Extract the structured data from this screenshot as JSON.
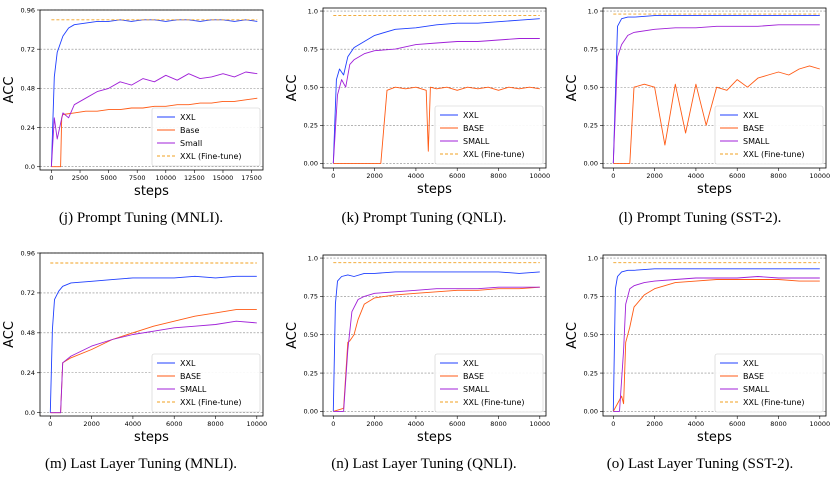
{
  "colors": {
    "xxl": "#1f3fff",
    "base": "#ff5a14",
    "small": "#a020d8",
    "finetune": "#f0a020",
    "grid": "#888888"
  },
  "chart_data": [
    {
      "type": "line",
      "caption": "(j) Prompt Tuning (MNLI).",
      "xlabel": "steps",
      "ylabel": "ACC",
      "xlim": [
        -1000,
        18500
      ],
      "ylim": [
        -0.02,
        0.96
      ],
      "xticks": [
        0,
        2500,
        5000,
        7500,
        10000,
        12500,
        15000,
        17500
      ],
      "xtick_labels": [
        "0",
        "2500",
        "5000",
        "7500",
        "10000",
        "12500",
        "15000",
        "17500"
      ],
      "yticks": [
        0.0,
        0.24,
        0.48,
        0.72,
        0.96
      ],
      "ytick_labels": [
        "0.0",
        "0.24",
        "0.48",
        "0.72",
        "0.96"
      ],
      "grid_y": true,
      "legend": [
        "XXL",
        "Base",
        "Small",
        "XXL (Fine-tune)"
      ],
      "legend_position": "lower-right",
      "series": [
        {
          "name": "XXL",
          "x": [
            0,
            250,
            500,
            1000,
            1500,
            2000,
            3000,
            4000,
            5000,
            6000,
            7000,
            8000,
            9000,
            10000,
            11000,
            12000,
            13000,
            14000,
            15000,
            16000,
            17000,
            18000
          ],
          "y": [
            0.0,
            0.55,
            0.7,
            0.8,
            0.85,
            0.87,
            0.88,
            0.89,
            0.89,
            0.9,
            0.89,
            0.9,
            0.9,
            0.89,
            0.9,
            0.9,
            0.89,
            0.9,
            0.9,
            0.89,
            0.9,
            0.89
          ]
        },
        {
          "name": "Base",
          "x": [
            0,
            800,
            900,
            1000,
            2000,
            3000,
            4000,
            5000,
            6000,
            7000,
            8000,
            9000,
            10000,
            11000,
            12000,
            13000,
            14000,
            15000,
            16000,
            17000,
            18000
          ],
          "y": [
            0.0,
            0.0,
            0.3,
            0.32,
            0.33,
            0.34,
            0.34,
            0.35,
            0.35,
            0.36,
            0.36,
            0.37,
            0.37,
            0.38,
            0.38,
            0.39,
            0.39,
            0.4,
            0.4,
            0.41,
            0.42
          ]
        },
        {
          "name": "Small",
          "x": [
            0,
            250,
            500,
            1000,
            1500,
            2000,
            3000,
            4000,
            5000,
            6000,
            7000,
            8000,
            9000,
            10000,
            11000,
            12000,
            13000,
            14000,
            15000,
            16000,
            17000,
            18000
          ],
          "y": [
            0.0,
            0.3,
            0.17,
            0.33,
            0.3,
            0.38,
            0.42,
            0.46,
            0.48,
            0.52,
            0.5,
            0.54,
            0.52,
            0.56,
            0.53,
            0.57,
            0.54,
            0.55,
            0.57,
            0.55,
            0.58,
            0.57
          ]
        },
        {
          "name": "XXL (Fine-tune)",
          "x": [
            0,
            18000
          ],
          "y": [
            0.9,
            0.9
          ]
        }
      ]
    },
    {
      "type": "line",
      "caption": "(k) Prompt Tuning (QNLI).",
      "xlabel": "steps",
      "ylabel": "ACC",
      "xlim": [
        -500,
        10300
      ],
      "ylim": [
        -0.03,
        1.02
      ],
      "xticks": [
        0,
        2000,
        4000,
        6000,
        8000,
        10000
      ],
      "xtick_labels": [
        "0",
        "2000",
        "4000",
        "6000",
        "8000",
        "10000"
      ],
      "yticks": [
        0.0,
        0.25,
        0.5,
        0.75,
        1.0
      ],
      "ytick_labels": [
        "0.00",
        "0.25",
        "0.50",
        "0.75",
        "1.0"
      ],
      "grid_y": true,
      "legend": [
        "XXL",
        "BASE",
        "SMALL",
        "XXL (Fine-tune)"
      ],
      "legend_position": "lower-right",
      "series": [
        {
          "name": "XXL",
          "x": [
            0,
            150,
            300,
            500,
            700,
            1000,
            1500,
            2000,
            3000,
            4000,
            5000,
            6000,
            7000,
            8000,
            9000,
            10000
          ],
          "y": [
            0.0,
            0.55,
            0.62,
            0.58,
            0.7,
            0.76,
            0.8,
            0.84,
            0.88,
            0.89,
            0.91,
            0.92,
            0.92,
            0.93,
            0.94,
            0.95
          ]
        },
        {
          "name": "BASE",
          "x": [
            0,
            2300,
            2600,
            3000,
            3500,
            4000,
            4500,
            4600,
            4700,
            5000,
            5500,
            6000,
            6500,
            7000,
            7500,
            8000,
            8500,
            9000,
            9500,
            10000
          ],
          "y": [
            0.0,
            0.0,
            0.48,
            0.5,
            0.49,
            0.5,
            0.48,
            0.08,
            0.5,
            0.49,
            0.5,
            0.48,
            0.5,
            0.49,
            0.5,
            0.48,
            0.5,
            0.49,
            0.5,
            0.49
          ]
        },
        {
          "name": "SMALL",
          "x": [
            0,
            200,
            400,
            600,
            800,
            1000,
            1500,
            2000,
            3000,
            4000,
            5000,
            6000,
            7000,
            8000,
            9000,
            10000
          ],
          "y": [
            0.0,
            0.45,
            0.55,
            0.5,
            0.65,
            0.68,
            0.72,
            0.74,
            0.75,
            0.78,
            0.79,
            0.8,
            0.8,
            0.81,
            0.82,
            0.82
          ]
        },
        {
          "name": "XXL (Fine-tune)",
          "x": [
            0,
            10000
          ],
          "y": [
            0.97,
            0.97
          ]
        }
      ]
    },
    {
      "type": "line",
      "caption": "(l) Prompt Tuning (SST-2).",
      "xlabel": "steps",
      "ylabel": "ACC",
      "xlim": [
        -500,
        10300
      ],
      "ylim": [
        -0.03,
        1.02
      ],
      "xticks": [
        0,
        2000,
        4000,
        6000,
        8000,
        10000
      ],
      "xtick_labels": [
        "0",
        "2000",
        "4000",
        "6000",
        "8000",
        "10000"
      ],
      "yticks": [
        0.0,
        0.25,
        0.5,
        0.75,
        1.0
      ],
      "ytick_labels": [
        "0.00",
        "0.25",
        "0.50",
        "0.75",
        "1.0"
      ],
      "grid_y": true,
      "legend": [
        "XXL",
        "BASE",
        "SMALL",
        "XXL (Fine-tune)"
      ],
      "legend_position": "lower-right",
      "series": [
        {
          "name": "XXL",
          "x": [
            0,
            200,
            400,
            700,
            1000,
            2000,
            3000,
            4000,
            5000,
            6000,
            7000,
            8000,
            9000,
            10000
          ],
          "y": [
            0.0,
            0.9,
            0.95,
            0.96,
            0.96,
            0.97,
            0.97,
            0.97,
            0.97,
            0.97,
            0.97,
            0.97,
            0.97,
            0.97
          ]
        },
        {
          "name": "BASE",
          "x": [
            0,
            800,
            1000,
            1500,
            2000,
            2500,
            3000,
            3500,
            4000,
            4500,
            5000,
            5500,
            6000,
            6500,
            7000,
            7500,
            8000,
            8500,
            9000,
            9500,
            10000
          ],
          "y": [
            0.0,
            0.0,
            0.5,
            0.52,
            0.5,
            0.12,
            0.52,
            0.2,
            0.52,
            0.25,
            0.5,
            0.48,
            0.55,
            0.5,
            0.56,
            0.58,
            0.6,
            0.58,
            0.62,
            0.64,
            0.62
          ]
        },
        {
          "name": "SMALL",
          "x": [
            0,
            200,
            400,
            700,
            1000,
            2000,
            3000,
            4000,
            5000,
            6000,
            7000,
            8000,
            9000,
            10000
          ],
          "y": [
            0.0,
            0.7,
            0.78,
            0.84,
            0.86,
            0.88,
            0.89,
            0.89,
            0.9,
            0.9,
            0.9,
            0.91,
            0.91,
            0.91
          ]
        },
        {
          "name": "XXL (Fine-tune)",
          "x": [
            0,
            10000
          ],
          "y": [
            0.98,
            0.98
          ]
        }
      ]
    },
    {
      "type": "line",
      "caption": "(m) Last Layer Tuning (MNLI).",
      "xlabel": "steps",
      "ylabel": "ACC",
      "xlim": [
        -500,
        10300
      ],
      "ylim": [
        -0.02,
        0.96
      ],
      "xticks": [
        0,
        2000,
        4000,
        6000,
        8000,
        10000
      ],
      "xtick_labels": [
        "0",
        "2000",
        "4000",
        "6000",
        "8000",
        "10000"
      ],
      "yticks": [
        0.0,
        0.24,
        0.48,
        0.72,
        0.96
      ],
      "ytick_labels": [
        "0.0",
        "0.24",
        "0.48",
        "0.72",
        "0.96"
      ],
      "grid_y": true,
      "legend": [
        "XXL",
        "BASE",
        "SMALL",
        "XXL (Fine-tune)"
      ],
      "legend_position": "lower-right",
      "series": [
        {
          "name": "XXL",
          "x": [
            0,
            100,
            200,
            400,
            600,
            1000,
            2000,
            3000,
            4000,
            5000,
            6000,
            7000,
            8000,
            9000,
            10000
          ],
          "y": [
            0.0,
            0.5,
            0.68,
            0.73,
            0.76,
            0.78,
            0.79,
            0.8,
            0.81,
            0.81,
            0.81,
            0.82,
            0.81,
            0.82,
            0.82
          ]
        },
        {
          "name": "BASE",
          "x": [
            0,
            500,
            600,
            1000,
            2000,
            3000,
            4000,
            5000,
            6000,
            7000,
            8000,
            9000,
            10000
          ],
          "y": [
            0.0,
            0.0,
            0.3,
            0.33,
            0.38,
            0.44,
            0.48,
            0.52,
            0.55,
            0.58,
            0.6,
            0.62,
            0.62
          ]
        },
        {
          "name": "SMALL",
          "x": [
            0,
            500,
            600,
            1000,
            2000,
            3000,
            4000,
            5000,
            6000,
            7000,
            8000,
            9000,
            10000
          ],
          "y": [
            0.0,
            0.0,
            0.3,
            0.34,
            0.4,
            0.44,
            0.47,
            0.49,
            0.51,
            0.52,
            0.53,
            0.55,
            0.54
          ]
        },
        {
          "name": "XXL (Fine-tune)",
          "x": [
            0,
            10000
          ],
          "y": [
            0.9,
            0.9
          ]
        }
      ]
    },
    {
      "type": "line",
      "caption": "(n) Last Layer Tuning (QNLI).",
      "xlabel": "steps",
      "ylabel": "ACC",
      "xlim": [
        -500,
        10300
      ],
      "ylim": [
        -0.03,
        1.02
      ],
      "xticks": [
        0,
        2000,
        4000,
        6000,
        8000,
        10000
      ],
      "xtick_labels": [
        "0",
        "2000",
        "4000",
        "6000",
        "8000",
        "10000"
      ],
      "yticks": [
        0.0,
        0.25,
        0.5,
        0.75,
        1.0
      ],
      "ytick_labels": [
        "0.00",
        "0.25",
        "0.50",
        "0.75",
        "1.0"
      ],
      "grid_y": true,
      "legend": [
        "XXL",
        "BASE",
        "SMALL",
        "XXL (Fine-tune)"
      ],
      "legend_position": "lower-right",
      "series": [
        {
          "name": "XXL",
          "x": [
            0,
            100,
            200,
            400,
            700,
            1000,
            1500,
            2000,
            3000,
            4000,
            5000,
            6000,
            7000,
            8000,
            9000,
            10000
          ],
          "y": [
            0.0,
            0.7,
            0.85,
            0.88,
            0.89,
            0.88,
            0.9,
            0.9,
            0.91,
            0.91,
            0.91,
            0.91,
            0.91,
            0.91,
            0.9,
            0.91
          ]
        },
        {
          "name": "BASE",
          "x": [
            0,
            500,
            700,
            800,
            1000,
            1200,
            1500,
            2000,
            3000,
            4000,
            5000,
            6000,
            7000,
            8000,
            9000,
            10000
          ],
          "y": [
            0.0,
            0.02,
            0.45,
            0.46,
            0.5,
            0.6,
            0.7,
            0.74,
            0.76,
            0.77,
            0.78,
            0.79,
            0.79,
            0.8,
            0.8,
            0.81
          ]
        },
        {
          "name": "SMALL",
          "x": [
            0,
            500,
            700,
            900,
            1200,
            1500,
            2000,
            3000,
            4000,
            5000,
            6000,
            7000,
            8000,
            9000,
            10000
          ],
          "y": [
            0.0,
            0.0,
            0.4,
            0.65,
            0.73,
            0.75,
            0.77,
            0.78,
            0.79,
            0.8,
            0.8,
            0.8,
            0.81,
            0.81,
            0.81
          ]
        },
        {
          "name": "XXL (Fine-tune)",
          "x": [
            0,
            10000
          ],
          "y": [
            0.97,
            0.97
          ]
        }
      ]
    },
    {
      "type": "line",
      "caption": "(o) Last Layer Tuning (SST-2).",
      "xlabel": "steps",
      "ylabel": "ACC",
      "xlim": [
        -500,
        10300
      ],
      "ylim": [
        -0.03,
        1.02
      ],
      "xticks": [
        0,
        2000,
        4000,
        6000,
        8000,
        10000
      ],
      "xtick_labels": [
        "0",
        "2000",
        "4000",
        "6000",
        "8000",
        "10000"
      ],
      "yticks": [
        0.0,
        0.25,
        0.5,
        0.75,
        1.0
      ],
      "ytick_labels": [
        "0.00",
        "0.25",
        "0.50",
        "0.75",
        "1.0"
      ],
      "grid_y": true,
      "legend": [
        "XXL",
        "BASE",
        "SMALL",
        "XXL (Fine-tune)"
      ],
      "legend_position": "lower-right",
      "series": [
        {
          "name": "XXL",
          "x": [
            0,
            100,
            200,
            400,
            700,
            1000,
            2000,
            3000,
            4000,
            5000,
            6000,
            7000,
            8000,
            9000,
            10000
          ],
          "y": [
            0.0,
            0.8,
            0.88,
            0.91,
            0.92,
            0.92,
            0.93,
            0.93,
            0.93,
            0.93,
            0.93,
            0.93,
            0.93,
            0.93,
            0.93
          ]
        },
        {
          "name": "BASE",
          "x": [
            0,
            400,
            500,
            600,
            800,
            1000,
            1500,
            2000,
            3000,
            4000,
            5000,
            6000,
            7000,
            8000,
            9000,
            10000
          ],
          "y": [
            0.0,
            0.1,
            0.05,
            0.45,
            0.55,
            0.68,
            0.76,
            0.8,
            0.84,
            0.85,
            0.86,
            0.86,
            0.86,
            0.86,
            0.85,
            0.85
          ]
        },
        {
          "name": "SMALL",
          "x": [
            0,
            300,
            500,
            600,
            800,
            1000,
            1500,
            2000,
            3000,
            4000,
            5000,
            6000,
            7000,
            8000,
            9000,
            10000
          ],
          "y": [
            0.0,
            0.0,
            0.4,
            0.7,
            0.8,
            0.82,
            0.84,
            0.85,
            0.86,
            0.87,
            0.87,
            0.87,
            0.88,
            0.87,
            0.87,
            0.87
          ]
        },
        {
          "name": "XXL (Fine-tune)",
          "x": [
            0,
            10000
          ],
          "y": [
            0.97,
            0.97
          ]
        }
      ]
    }
  ]
}
